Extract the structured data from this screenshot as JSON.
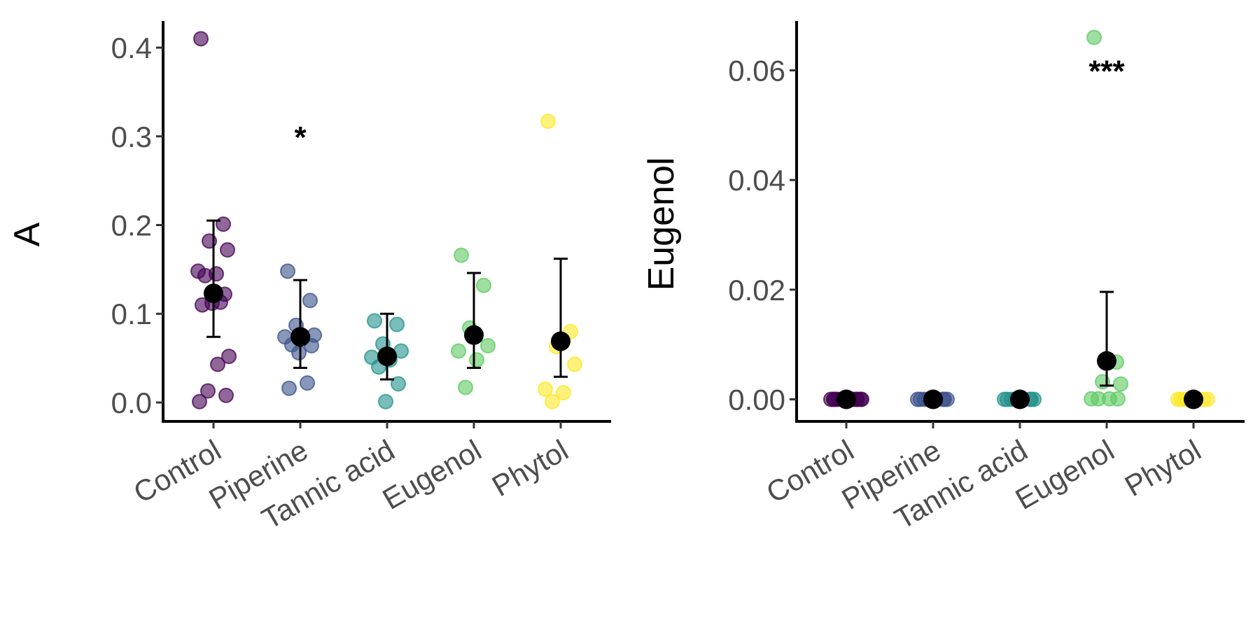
{
  "chart_data": [
    {
      "type": "scatter",
      "title": "",
      "xlabel": "",
      "ylabel": "A",
      "ylim": [
        -0.015,
        0.43
      ],
      "yticks": [
        0.0,
        0.1,
        0.2,
        0.3,
        0.4
      ],
      "ytick_labels": [
        "0.0",
        "0.1",
        "0.2",
        "0.3",
        "0.4"
      ],
      "categories": [
        "Control",
        "Piperine",
        "Tannic acid",
        "Eugenol",
        "Phytol"
      ],
      "colors": [
        "#440154",
        "#3b528b",
        "#21918c",
        "#5ec962",
        "#fde725"
      ],
      "series": [
        {
          "category": "Control",
          "points": [
            0.41,
            0.201,
            0.182,
            0.172,
            0.148,
            0.145,
            0.143,
            0.122,
            0.112,
            0.113,
            0.11,
            0.052,
            0.043,
            0.013,
            0.008,
            0.001
          ]
        },
        {
          "category": "Piperine",
          "points": [
            0.148,
            0.115,
            0.087,
            0.076,
            0.074,
            0.073,
            0.065,
            0.064,
            0.056,
            0.022,
            0.016
          ]
        },
        {
          "category": "Tannic acid",
          "points": [
            0.092,
            0.088,
            0.066,
            0.058,
            0.051,
            0.048,
            0.04,
            0.021,
            0.001
          ]
        },
        {
          "category": "Eugenol",
          "points": [
            0.166,
            0.132,
            0.084,
            0.064,
            0.058,
            0.048,
            0.017
          ]
        },
        {
          "category": "Phytol",
          "points": [
            0.317,
            0.08,
            0.063,
            0.043,
            0.015,
            0.011,
            0.001
          ]
        }
      ],
      "summary": [
        {
          "category": "Control",
          "mean": 0.123,
          "low": 0.074,
          "high": 0.205
        },
        {
          "category": "Piperine",
          "mean": 0.074,
          "low": 0.039,
          "high": 0.138
        },
        {
          "category": "Tannic acid",
          "mean": 0.052,
          "low": 0.026,
          "high": 0.1
        },
        {
          "category": "Eugenol",
          "mean": 0.076,
          "low": 0.039,
          "high": 0.146
        },
        {
          "category": "Phytol",
          "mean": 0.069,
          "low": 0.029,
          "high": 0.162
        }
      ],
      "annotations": [
        {
          "category": "Piperine",
          "text": "*",
          "y": 0.3
        }
      ]
    },
    {
      "type": "scatter",
      "title": "",
      "xlabel": "",
      "ylabel": "Eugenol",
      "ylim": [
        -0.003,
        0.069
      ],
      "yticks": [
        0.0,
        0.02,
        0.04,
        0.06
      ],
      "ytick_labels": [
        "0.00",
        "0.02",
        "0.04",
        "0.06"
      ],
      "categories": [
        "Control",
        "Piperine",
        "Tannic acid",
        "Eugenol",
        "Phytol"
      ],
      "colors": [
        "#440154",
        "#3b528b",
        "#21918c",
        "#5ec962",
        "#fde725"
      ],
      "series": [
        {
          "category": "Control",
          "points": [
            0,
            0,
            0,
            0,
            0,
            0,
            0,
            0,
            0,
            0,
            0,
            0
          ]
        },
        {
          "category": "Piperine",
          "points": [
            0,
            0,
            0,
            0,
            0,
            0,
            0,
            0,
            0
          ]
        },
        {
          "category": "Tannic acid",
          "points": [
            0,
            0,
            0,
            0,
            0,
            0,
            0,
            0
          ]
        },
        {
          "category": "Eugenol",
          "points": [
            0.066,
            0.0068,
            0.0032,
            0.0028,
            0.0001,
            0.0001,
            0.0001,
            0.0001
          ]
        },
        {
          "category": "Phytol",
          "points": [
            0,
            0,
            0,
            0,
            0,
            0,
            0
          ]
        }
      ],
      "summary": [
        {
          "category": "Control",
          "mean": 0.0,
          "low": 0.0,
          "high": 0.0
        },
        {
          "category": "Piperine",
          "mean": 0.0,
          "low": 0.0,
          "high": 0.0
        },
        {
          "category": "Tannic acid",
          "mean": 0.0,
          "low": 0.0,
          "high": 0.0
        },
        {
          "category": "Eugenol",
          "mean": 0.007,
          "low": 0.0025,
          "high": 0.0196
        },
        {
          "category": "Phytol",
          "mean": 0.0,
          "low": 0.0,
          "high": 0.0
        }
      ],
      "annotations": [
        {
          "category": "Eugenol",
          "text": "***",
          "y": 0.06
        }
      ]
    }
  ]
}
